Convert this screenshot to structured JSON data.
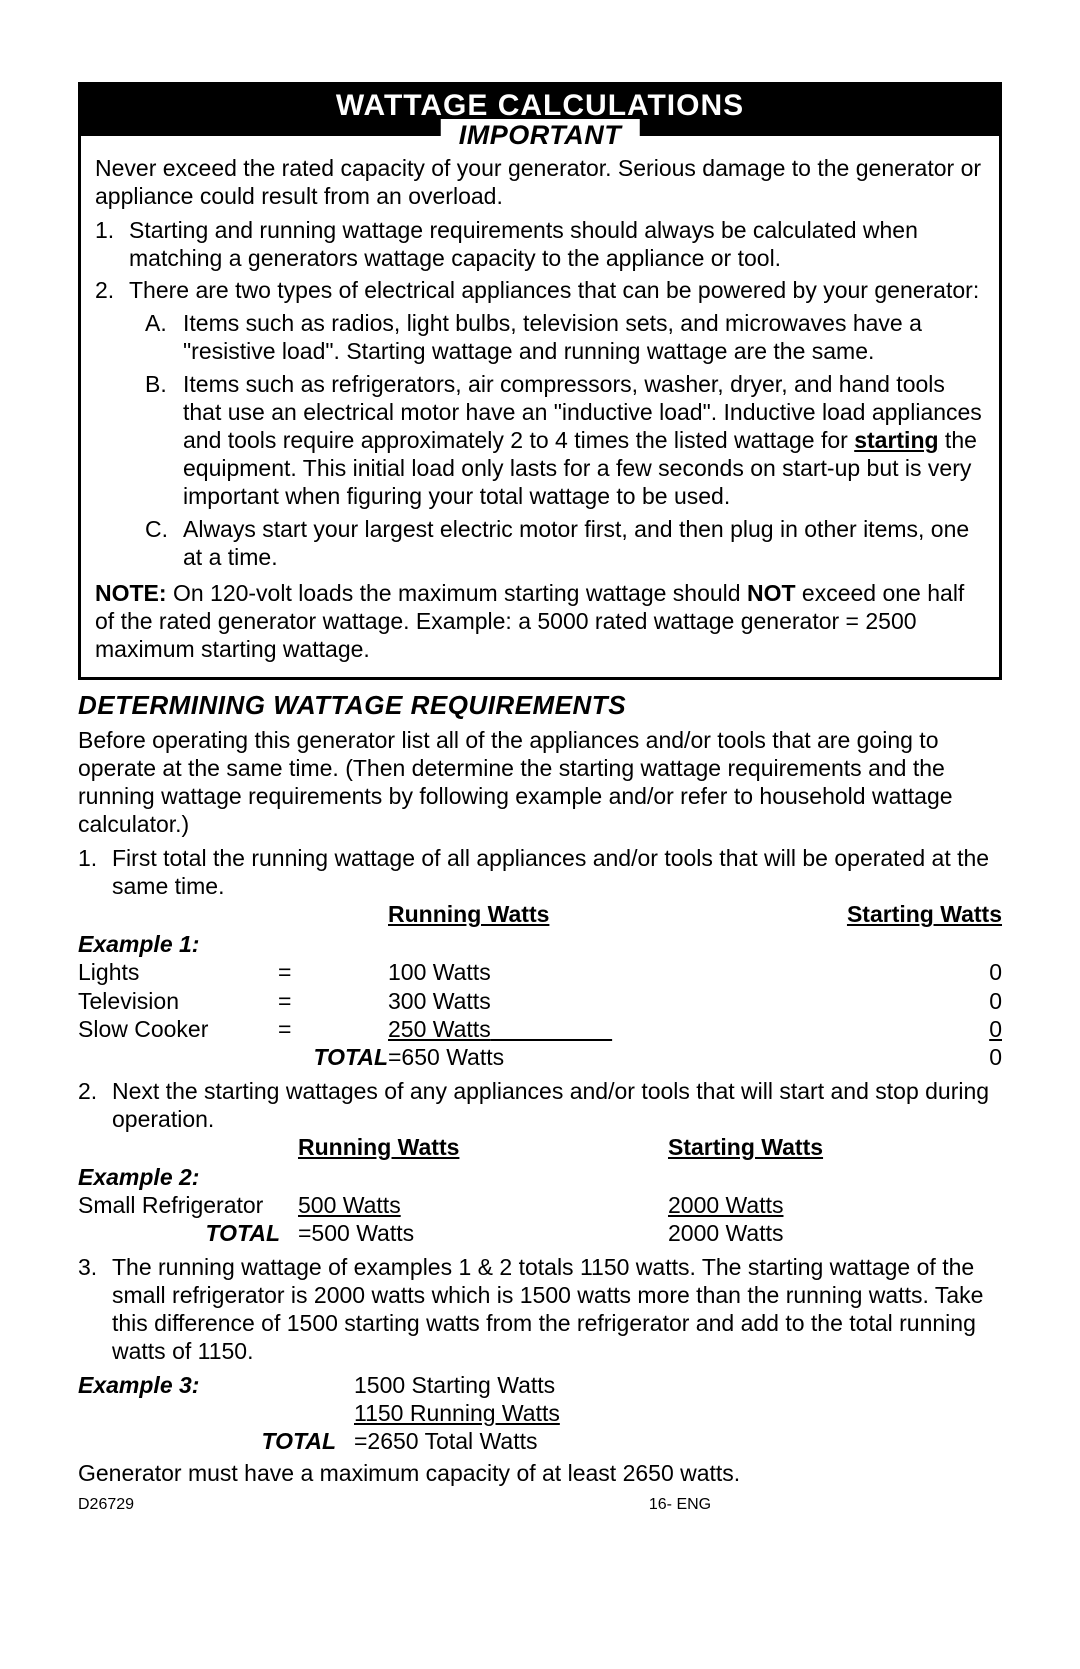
{
  "title": "WATTAGE CALCULATIONS",
  "important": {
    "legend": "IMPORTANT",
    "intro": "Never exceed the rated capacity of your generator. Serious damage to the generator or appliance could result from an overload.",
    "items": {
      "n1": "1.",
      "t1": "Starting and running wattage requirements should always be calculated when matching a generators wattage capacity to the appliance or tool.",
      "n2": "2.",
      "t2": "There are two types of electrical appliances that can be powered by your generator:",
      "subA_l": "A.",
      "subA_t": "Items such as radios, light bulbs, television sets, and microwaves have a \"resistive load\". Starting wattage and running wattage are the same.",
      "subB_l": "B.",
      "subB_t_pre": "Items such as refrigerators, air compressors, washer, dryer, and hand tools that use an electrical motor have an \"inductive load\". Inductive load appliances and tools require approximately 2 to 4 times the listed wattage for ",
      "subB_starting": "starting",
      "subB_t_post": " the equipment. This initial load only lasts for a few seconds on start-up but is very important when figuring your total wattage to be used.",
      "subC_l": "C.",
      "subC_t": "Always start your largest electric motor first, and then plug in other items, one at a time."
    },
    "note_label": "NOTE:",
    "note_pre": "  On 120-volt loads the maximum starting wattage should ",
    "note_not": "NOT",
    "note_post": " exceed one half of the rated generator wattage. Example: a 5000 rated wattage generator = 2500 maximum starting wattage."
  },
  "det": {
    "heading": "DETERMINING WATTAGE REQUIREMENTS",
    "intro": "Before operating this generator list all of the appliances and/or tools that are going to operate at the same time. (Then determine the starting wattage requirements and the running wattage requirements by following example and/or refer to household wattage calculator.)",
    "li1_n": "1.",
    "li1_t": "First total the running wattage of all appliances and/or tools that will be operated at the same time.",
    "hdr_run": "Running Watts",
    "hdr_start": "Starting Watts",
    "ex1_label": "Example 1:",
    "ex1": {
      "r1_name": "Lights",
      "r1_eq": "=",
      "r1_run": "100 Watts",
      "r1_start": "0",
      "r2_name": "Television",
      "r2_eq": "=",
      "r2_run": "300 Watts",
      "r2_start": "0",
      "r3_name": "Slow Cooker",
      "r3_eq": "=",
      "r3_run": "250 Watts",
      "r3_start": "0",
      "tot_label": "TOTAL",
      "tot_run": "=650 Watts",
      "tot_start": "0"
    },
    "li2_n": "2.",
    "li2_t": "Next the starting wattages of any appliances and/or tools that will start and stop during operation.",
    "ex2_label": "Example 2:",
    "ex2": {
      "r1_name": "Small Refrigerator",
      "r1_run": "500 Watts",
      "r1_start": "2000 Watts",
      "tot_label": "TOTAL",
      "tot_run": "=500 Watts",
      "tot_start": "2000 Watts"
    },
    "li3_n": "3.",
    "li3_t": "The running wattage of examples 1 & 2 totals 1150 watts. The starting wattage of the small refrigerator is 2000 watts which is 1500 watts more than the running watts. Take this difference of 1500 starting watts from the refrigerator and add to the total running watts of 1150.",
    "ex3_label": "Example 3:",
    "ex3": {
      "l1": "1500 Starting Watts",
      "l2": "1150 Running Watts",
      "tot_label": "TOTAL",
      "tot": "=2650  Total Watts"
    },
    "closing": "Generator must have a maximum capacity of at least 2650 watts."
  },
  "footer": {
    "left": "D26729",
    "center": "16- ENG"
  }
}
